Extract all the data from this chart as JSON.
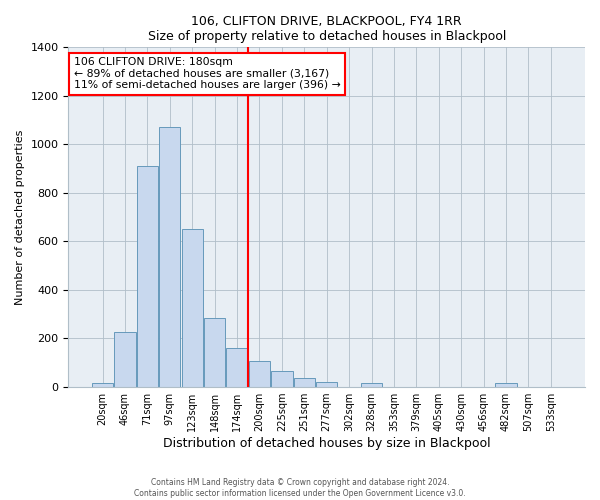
{
  "title": "106, CLIFTON DRIVE, BLACKPOOL, FY4 1RR",
  "subtitle": "Size of property relative to detached houses in Blackpool",
  "xlabel": "Distribution of detached houses by size in Blackpool",
  "ylabel": "Number of detached properties",
  "bar_labels": [
    "20sqm",
    "46sqm",
    "71sqm",
    "97sqm",
    "123sqm",
    "148sqm",
    "174sqm",
    "200sqm",
    "225sqm",
    "251sqm",
    "277sqm",
    "302sqm",
    "328sqm",
    "353sqm",
    "379sqm",
    "405sqm",
    "430sqm",
    "456sqm",
    "482sqm",
    "507sqm",
    "533sqm"
  ],
  "bar_values": [
    15,
    228,
    910,
    1070,
    650,
    285,
    160,
    108,
    65,
    38,
    22,
    0,
    15,
    0,
    0,
    0,
    0,
    0,
    15,
    0,
    0
  ],
  "bar_color": "#c8d8ee",
  "bar_edgecolor": "#6699bb",
  "vline_index": 6,
  "vline_color": "red",
  "annotation_line1": "106 CLIFTON DRIVE: 180sqm",
  "annotation_line2": "← 89% of detached houses are smaller (3,167)",
  "annotation_line3": "11% of semi-detached houses are larger (396) →",
  "ylim": [
    0,
    1400
  ],
  "yticks": [
    0,
    200,
    400,
    600,
    800,
    1000,
    1200,
    1400
  ],
  "footer1": "Contains HM Land Registry data © Crown copyright and database right 2024.",
  "footer2": "Contains public sector information licensed under the Open Government Licence v3.0.",
  "fig_bg_color": "#ffffff",
  "plot_bg_color": "#e8eef4",
  "grid_color": "#b0bec8"
}
